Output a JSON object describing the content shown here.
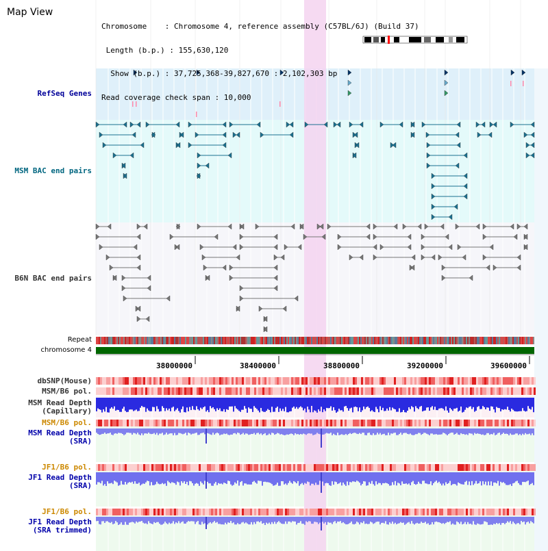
{
  "header": {
    "title": "Map View",
    "info_lines": [
      "Chromosome    : Chromosome 4, reference assembly (C57BL/6J) (Build 37)",
      " Length (b.p.) : 155,630,120",
      "  Show (b.p.) : 37,725,368-39,827,670 : 2,102,303 bp",
      "Read coverage check span : 10,000"
    ]
  },
  "tracks": {
    "refseq": "RefSeq Genes",
    "msm_bac": "MSM BAC end pairs",
    "b6n_bac": "B6N BAC end pairs",
    "repeat": "Repeat",
    "chromosome": "chromosome 4",
    "dbsnp": "dbSNP(Mouse)",
    "msm_b6_pol_1": "MSM/B6 pol.",
    "msm_depth_cap": "MSM Read Depth\n(Capillary)",
    "msm_b6_pol_2": "MSM/B6 pol.",
    "msm_depth_sra": "MSM Read Depth\n(SRA)",
    "jf1_b6_pol_1": "JF1/B6 pol.",
    "jf1_depth_sra": "JF1 Read Depth\n(SRA)",
    "jf1_b6_pol_2": "JF1/B6 pol.",
    "jf1_depth_trim": "JF1 Read Depth\n(SRA trimmed)"
  },
  "axis": {
    "ticks": [
      "38000000",
      "38400000",
      "38800000",
      "39200000",
      "39600000"
    ]
  },
  "colors": {
    "refseq_label": "#000099",
    "msm_bac_label": "#006680",
    "b6n_bac_label": "#333333",
    "msm_pol_label": "#cc8800",
    "depth_label": "#0000aa",
    "highlight": "#f5d4f0",
    "chromosome_bar": "#006600",
    "refseq_bg": "#dff0fa",
    "msm_bg": "#e4fafa",
    "b6n_bg": "#f6f6fa"
  }
}
